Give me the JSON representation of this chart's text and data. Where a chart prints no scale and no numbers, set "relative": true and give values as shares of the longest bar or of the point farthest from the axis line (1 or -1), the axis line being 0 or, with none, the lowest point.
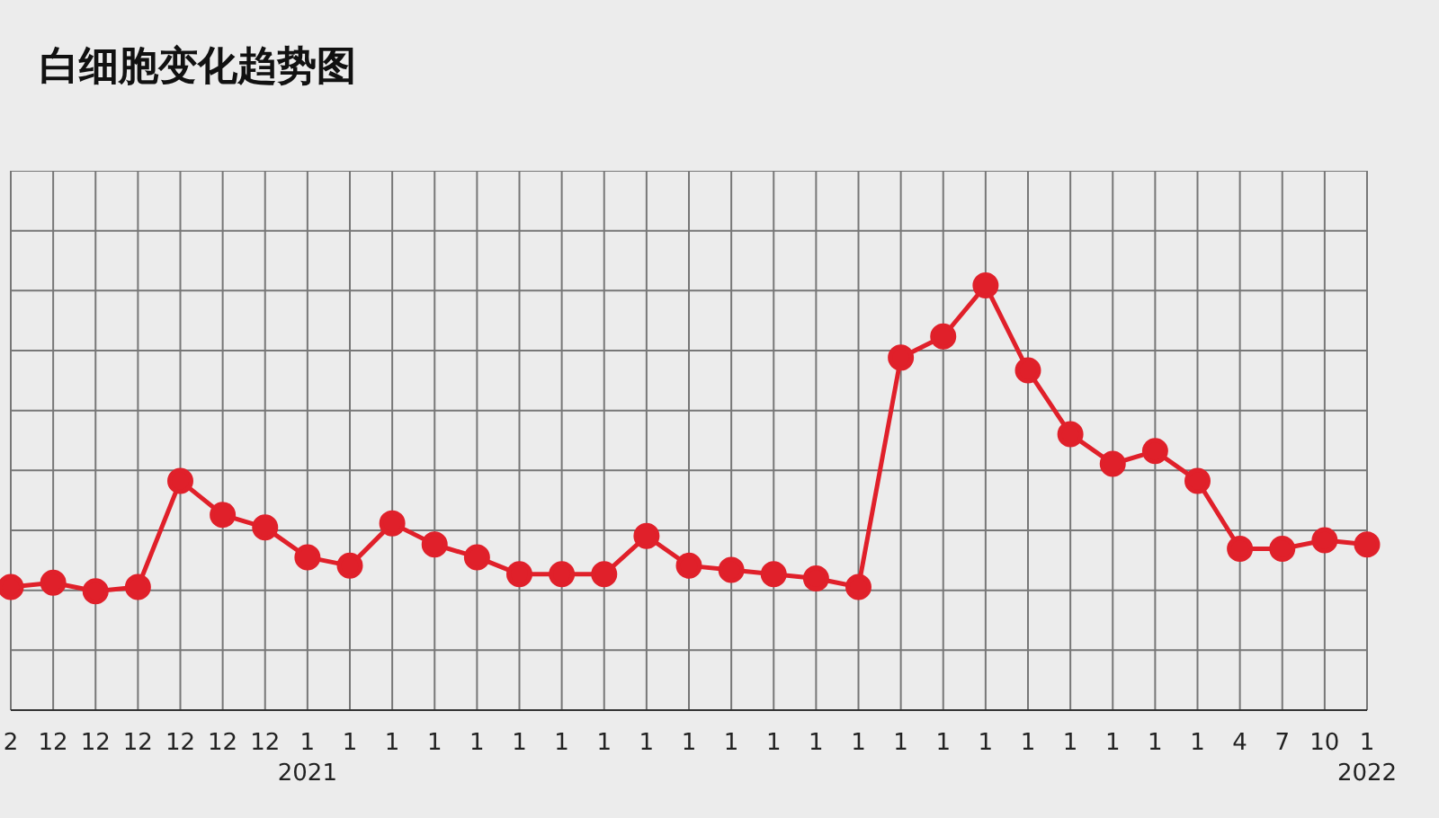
{
  "chart_data": {
    "type": "line",
    "title": "白细胞变化趋势图",
    "relative": true,
    "grid": true,
    "marker": "circle",
    "line_style": "solid",
    "legend": false,
    "categories": [
      "2",
      "12",
      "12",
      "12",
      "12",
      "12",
      "12",
      "1\n2021",
      "1",
      "1",
      "1",
      "1",
      "1",
      "1",
      "1",
      "1",
      "1",
      "1",
      "1",
      "1",
      "1",
      "1",
      "1",
      "1",
      "1",
      "1",
      "1",
      "1",
      "1",
      "4",
      "7",
      "10",
      "1\n2022"
    ],
    "series": [
      {
        "color": "#e0202a",
        "values": [
          0.29,
          0.3,
          0.28,
          0.29,
          0.54,
          0.46,
          0.43,
          0.36,
          0.34,
          0.44,
          0.39,
          0.36,
          0.32,
          0.32,
          0.32,
          0.41,
          0.34,
          0.33,
          0.32,
          0.31,
          0.29,
          0.83,
          0.88,
          1,
          0.8,
          0.65,
          0.58,
          0.61,
          0.54,
          0.38,
          0.38,
          0.4,
          0.39
        ]
      }
    ]
  }
}
